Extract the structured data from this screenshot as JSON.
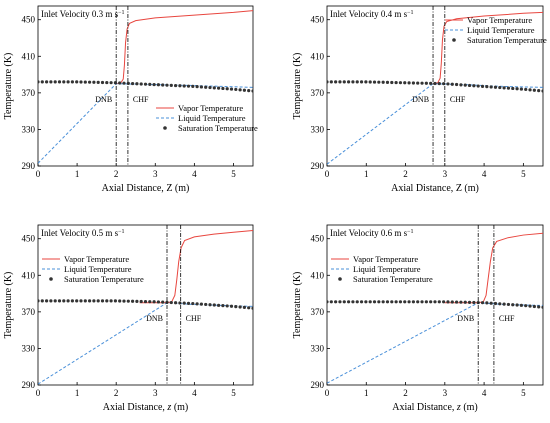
{
  "chart_data": [
    {
      "type": "line",
      "annotation": "Inlet Velocity 0.3 m s",
      "annotation_sup": "−1",
      "xlabel_prefix": "Axial Distance, ",
      "xlabel_var": "Z",
      "xlabel_suffix": " (m)",
      "xlabel_italic": false,
      "ylabel": "Temperature (K)",
      "xlim": [
        0,
        5.5
      ],
      "ylim": [
        290,
        465
      ],
      "xticks": [
        0,
        1,
        2,
        3,
        4,
        5
      ],
      "yticks": [
        290,
        330,
        370,
        410,
        450
      ],
      "legend_position": "right",
      "legend_order": [
        "Vapor Temperature",
        "Liquid Temperature",
        "Saturation Temperature"
      ],
      "dnb": {
        "label": "DNB",
        "x": 2.0
      },
      "chf": {
        "label": "CHF",
        "x": 2.3
      },
      "series": [
        {
          "name": "Vapor Temperature",
          "style": "solid",
          "color": "#e8463f",
          "points": [
            [
              2.0,
              380
            ],
            [
              2.12,
              381
            ],
            [
              2.18,
              385
            ],
            [
              2.21,
              400
            ],
            [
              2.24,
              425
            ],
            [
              2.28,
              440
            ],
            [
              2.34,
              446
            ],
            [
              2.5,
              449
            ],
            [
              3.0,
              452
            ],
            [
              4.0,
              455
            ],
            [
              5.0,
              458
            ],
            [
              5.5,
              460
            ]
          ]
        },
        {
          "name": "Liquid Temperature",
          "style": "dashed",
          "color": "#4a90d9",
          "points": [
            [
              0,
              293
            ],
            [
              2.0,
              380
            ],
            [
              3.0,
              379
            ],
            [
              4.0,
              378
            ],
            [
              5.5,
              376
            ]
          ]
        },
        {
          "name": "Saturation Temperature",
          "style": "dotted",
          "color": "#333333",
          "points": [
            [
              0,
              382
            ],
            [
              1.0,
              382
            ],
            [
              2.0,
              381
            ],
            [
              3.0,
              379
            ],
            [
              4.0,
              377
            ],
            [
              5.0,
              374
            ],
            [
              5.5,
              372
            ]
          ]
        }
      ]
    },
    {
      "type": "line",
      "annotation": "Inlet Velocity 0.4 m s",
      "annotation_sup": "−1",
      "xlabel_prefix": "Axial Distance, ",
      "xlabel_var": "Z",
      "xlabel_suffix": " (m)",
      "xlabel_italic": false,
      "ylabel": "Temperature (K)",
      "xlim": [
        0,
        5.5
      ],
      "ylim": [
        290,
        465
      ],
      "xticks": [
        0,
        1,
        2,
        3,
        4,
        5
      ],
      "yticks": [
        290,
        330,
        370,
        410,
        450
      ],
      "legend_position": "top-right",
      "legend_order": [
        "Vapor Temperature",
        "Liquid Temperature",
        "Saturation Temperature"
      ],
      "dnb": {
        "label": "DNB",
        "x": 2.7
      },
      "chf": {
        "label": "CHF",
        "x": 3.0
      },
      "series": [
        {
          "name": "Vapor Temperature",
          "style": "solid",
          "color": "#e8463f",
          "points": [
            [
              2.7,
              380
            ],
            [
              2.82,
              381
            ],
            [
              2.88,
              386
            ],
            [
              2.91,
              402
            ],
            [
              2.94,
              428
            ],
            [
              2.98,
              443
            ],
            [
              3.05,
              448
            ],
            [
              3.3,
              451
            ],
            [
              4.0,
              454
            ],
            [
              5.0,
              457
            ],
            [
              5.5,
              458
            ]
          ]
        },
        {
          "name": "Liquid Temperature",
          "style": "dashed",
          "color": "#4a90d9",
          "points": [
            [
              0,
              292
            ],
            [
              2.7,
              380
            ],
            [
              3.5,
              379
            ],
            [
              4.5,
              377
            ],
            [
              5.5,
              376
            ]
          ]
        },
        {
          "name": "Saturation Temperature",
          "style": "dotted",
          "color": "#333333",
          "points": [
            [
              0,
              382
            ],
            [
              1.0,
              382
            ],
            [
              2.0,
              381
            ],
            [
              3.0,
              380
            ],
            [
              4.0,
              377
            ],
            [
              5.0,
              374
            ],
            [
              5.5,
              372
            ]
          ]
        }
      ]
    },
    {
      "type": "line",
      "annotation": "Inlet Velocity 0.5 m s",
      "annotation_sup": "−1",
      "xlabel_prefix": "Axial Distance, ",
      "xlabel_var": "z",
      "xlabel_suffix": " (m)",
      "xlabel_italic": true,
      "ylabel": "Temperature (K)",
      "xlim": [
        0,
        5.5
      ],
      "ylim": [
        290,
        465
      ],
      "xticks": [
        0,
        1,
        2,
        3,
        4,
        5
      ],
      "yticks": [
        290,
        330,
        370,
        410,
        450
      ],
      "legend_position": "top-left",
      "legend_order": [
        "Vapor Temperature",
        "Liquid Temperature",
        "Saturation Temperature"
      ],
      "dnb": {
        "label": "DNB",
        "x": 3.3
      },
      "chf": {
        "label": "CHF",
        "x": 3.65
      },
      "series": [
        {
          "name": "Vapor Temperature",
          "style": "solid",
          "color": "#e8463f",
          "points": [
            [
              2.6,
              380
            ],
            [
              3.3,
              380
            ],
            [
              3.42,
              381
            ],
            [
              3.5,
              388
            ],
            [
              3.55,
              405
            ],
            [
              3.6,
              425
            ],
            [
              3.66,
              440
            ],
            [
              3.75,
              448
            ],
            [
              4.0,
              452
            ],
            [
              4.5,
              455
            ],
            [
              5.0,
              457
            ],
            [
              5.5,
              459
            ]
          ]
        },
        {
          "name": "Liquid Temperature",
          "style": "dashed",
          "color": "#4a90d9",
          "points": [
            [
              0,
              291
            ],
            [
              3.3,
              380
            ],
            [
              4.0,
              378
            ],
            [
              5.5,
              376
            ]
          ]
        },
        {
          "name": "Saturation Temperature",
          "style": "dotted",
          "color": "#333333",
          "points": [
            [
              0,
              382
            ],
            [
              1.0,
              382
            ],
            [
              2.0,
              382
            ],
            [
              3.0,
              381
            ],
            [
              4.0,
              379
            ],
            [
              5.0,
              376
            ],
            [
              5.5,
              374
            ]
          ]
        }
      ]
    },
    {
      "type": "line",
      "annotation": "Inlet Velocity 0.6 m s",
      "annotation_sup": "−1",
      "xlabel_prefix": "Axial Distance, ",
      "xlabel_var": "z",
      "xlabel_suffix": " (m)",
      "xlabel_italic": true,
      "ylabel": "Temperature (K)",
      "xlim": [
        0,
        5.5
      ],
      "ylim": [
        290,
        465
      ],
      "xticks": [
        0,
        1,
        2,
        3,
        4,
        5
      ],
      "yticks": [
        290,
        330,
        370,
        410,
        450
      ],
      "legend_position": "top-left",
      "legend_order": [
        "Vapor Temperature",
        "Liquid Temperature",
        "Saturation Temperature"
      ],
      "dnb": {
        "label": "DNB",
        "x": 3.85
      },
      "chf": {
        "label": "CHF",
        "x": 4.25
      },
      "series": [
        {
          "name": "Vapor Temperature",
          "style": "solid",
          "color": "#e8463f",
          "points": [
            [
              3.0,
              380
            ],
            [
              3.85,
              380
            ],
            [
              3.98,
              381
            ],
            [
              4.05,
              388
            ],
            [
              4.1,
              405
            ],
            [
              4.16,
              425
            ],
            [
              4.22,
              440
            ],
            [
              4.32,
              447
            ],
            [
              4.6,
              451
            ],
            [
              5.0,
              454
            ],
            [
              5.5,
              456
            ]
          ]
        },
        {
          "name": "Liquid Temperature",
          "style": "dashed",
          "color": "#4a90d9",
          "points": [
            [
              0,
              292
            ],
            [
              3.85,
              380
            ],
            [
              4.5,
              378
            ],
            [
              5.5,
              377
            ]
          ]
        },
        {
          "name": "Saturation Temperature",
          "style": "dotted",
          "color": "#333333",
          "points": [
            [
              0,
              381
            ],
            [
              1.0,
              381
            ],
            [
              2.0,
              381
            ],
            [
              3.0,
              381
            ],
            [
              4.0,
              380
            ],
            [
              5.0,
              377
            ],
            [
              5.5,
              375
            ]
          ]
        }
      ]
    }
  ]
}
